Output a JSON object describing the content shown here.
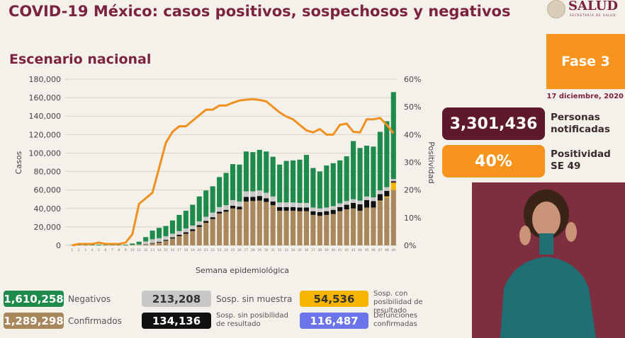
{
  "header": {
    "title": "COVID-19 México: casos positivos, sospechosos y negativos",
    "subtitle": "Escenario nacional",
    "logo_text": "SALUD",
    "logo_subtext": "SECRETARÍA DE SALUD"
  },
  "side": {
    "phase": "Fase 3",
    "date": "17 diciembre, 2020",
    "notified_value": "3,301,436",
    "notified_label_1": "Personas",
    "notified_label_2": "notificadas",
    "positivity_value": "40%",
    "positivity_label_1": "Positividad",
    "positivity_label_2": "SE 49"
  },
  "legend": [
    {
      "value": "1,610,258",
      "label": "Negativos",
      "color": "#1e8a4c"
    },
    {
      "value": "213,208",
      "label": "Sosp. sin muestra",
      "color": "#c8c8c8"
    },
    {
      "value": "54,536",
      "label": "Sosp. con posibilidad de resultado",
      "color": "#f7b500"
    },
    {
      "value": "1,289,298",
      "label": "Confirmados",
      "color": "#a8875c"
    },
    {
      "value": "134,136",
      "label": "Sosp. sin posibilidad de resultado",
      "color": "#111111"
    },
    {
      "value": "116,487",
      "label": "Defunciones confirmadas",
      "color": "#6b74e8"
    }
  ],
  "colors": {
    "title": "#7b2340",
    "line": "#f0901e",
    "notified_box": "#5e1a2a",
    "positivity_box": "#f7941d"
  },
  "chart_data": {
    "type": "bar",
    "stacked": true,
    "xlabel": "Semana epidemiológica",
    "ylabel": "Casos",
    "y2label": "Positividad",
    "ylim": [
      0,
      180000
    ],
    "yticks": [
      "0",
      "20,000",
      "40,000",
      "60,000",
      "80,000",
      "100,000",
      "120,000",
      "140,000",
      "160,000",
      "180,000"
    ],
    "y2lim": [
      0,
      60
    ],
    "y2ticks": [
      "0%",
      "10%",
      "20%",
      "30%",
      "40%",
      "50%",
      "60%"
    ],
    "grid": true,
    "categories": [
      1,
      2,
      3,
      4,
      5,
      6,
      7,
      8,
      9,
      10,
      11,
      12,
      13,
      14,
      15,
      16,
      17,
      18,
      19,
      20,
      21,
      22,
      23,
      24,
      25,
      26,
      27,
      28,
      29,
      30,
      31,
      32,
      33,
      34,
      35,
      36,
      37,
      38,
      39,
      40,
      41,
      42,
      43,
      44,
      45,
      46,
      47,
      48,
      49
    ],
    "series": [
      {
        "name": "Confirmados",
        "color": "#a8875c",
        "values": [
          0,
          0,
          0,
          0,
          0,
          0,
          0,
          0,
          100,
          300,
          500,
          1000,
          2000,
          3000,
          5000,
          7500,
          10000,
          12500,
          15500,
          20000,
          24500,
          28500,
          34500,
          36500,
          40000,
          39000,
          47500,
          48000,
          48500,
          47000,
          43500,
          37500,
          37500,
          37500,
          37000,
          37000,
          33000,
          32000,
          33000,
          34000,
          37000,
          39000,
          40000,
          37500,
          41000,
          41000,
          48000,
          52000,
          60000
        ]
      },
      {
        "name": "Sosp. con posibilidad de resultado",
        "color": "#f7b500",
        "values": [
          0,
          0,
          0,
          0,
          0,
          0,
          0,
          0,
          0,
          0,
          0,
          0,
          0,
          0,
          0,
          0,
          0,
          0,
          0,
          0,
          0,
          0,
          0,
          0,
          0,
          0,
          0,
          0,
          0,
          0,
          0,
          0,
          0,
          0,
          0,
          0,
          0,
          0,
          0,
          0,
          0,
          0,
          0,
          0,
          0,
          0,
          500,
          1000,
          8000
        ]
      },
      {
        "name": "Sosp. sin posibilidad de resultado",
        "color": "#111111",
        "values": [
          0,
          0,
          0,
          0,
          0,
          0,
          0,
          0,
          0,
          0,
          0,
          300,
          600,
          800,
          1000,
          1200,
          1500,
          1800,
          2000,
          2000,
          2000,
          2000,
          2000,
          2000,
          3000,
          3000,
          5000,
          4500,
          5000,
          4000,
          4000,
          4000,
          4000,
          4000,
          4000,
          4000,
          4000,
          4000,
          4000,
          4500,
          4500,
          5000,
          6000,
          7000,
          8000,
          7000,
          7000,
          6000,
          1500
        ]
      },
      {
        "name": "Sosp. sin muestra",
        "color": "#c8c8c8",
        "values": [
          0,
          0,
          0,
          0,
          0,
          0,
          0,
          0,
          0,
          200,
          500,
          3000,
          4000,
          4000,
          4000,
          4000,
          4000,
          4000,
          4000,
          4000,
          4500,
          5000,
          5000,
          5000,
          6000,
          5500,
          6000,
          6000,
          6000,
          6000,
          5500,
          5000,
          5000,
          5000,
          5000,
          5000,
          4000,
          4000,
          4000,
          4000,
          4000,
          4000,
          4000,
          4000,
          4000,
          4000,
          4000,
          4000,
          2500
        ]
      },
      {
        "name": "Negativos",
        "color": "#1e8a4c",
        "values": [
          300,
          400,
          600,
          900,
          800,
          600,
          500,
          500,
          700,
          1500,
          3000,
          4700,
          9400,
          11200,
          11000,
          14300,
          17500,
          19200,
          22500,
          27000,
          28500,
          28500,
          32500,
          35000,
          39000,
          40000,
          43200,
          42500,
          44000,
          44700,
          43000,
          41000,
          45000,
          45500,
          46800,
          52000,
          42800,
          40000,
          45500,
          46500,
          46500,
          48500,
          63000,
          57000,
          55000,
          55000,
          63500,
          71500,
          94000
        ]
      }
    ],
    "line": {
      "name": "Positividad",
      "axis": "right",
      "values": [
        0,
        0.5,
        0.5,
        0.5,
        1,
        0.5,
        0.5,
        0.5,
        1,
        4,
        15,
        17,
        19,
        28,
        37,
        41,
        43,
        43,
        45,
        47,
        49,
        49,
        50.5,
        50.5,
        51.5,
        52.3,
        52.6,
        52.8,
        52.5,
        52,
        50,
        48,
        46.5,
        45.5,
        43.5,
        41.5,
        40.8,
        42,
        40,
        40,
        43.5,
        44,
        41,
        40.8,
        45.5,
        45.5,
        46,
        43.5,
        40.5
      ]
    }
  }
}
